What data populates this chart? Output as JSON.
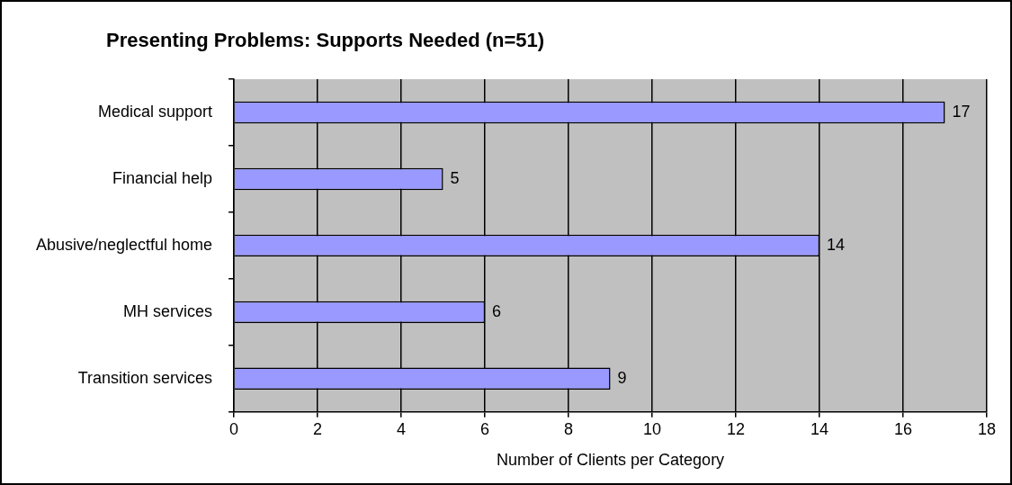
{
  "chart_data": {
    "type": "bar",
    "orientation": "horizontal",
    "title": "Presenting Problems: Supports Needed (n=51)",
    "xlabel": "Number of Clients per Category",
    "categories": [
      "Medical support",
      "Financial help",
      "Abusive/neglectful home",
      "MH services",
      "Transition services"
    ],
    "values": [
      17,
      5,
      14,
      6,
      9
    ],
    "color": "#9999ff",
    "xlim": [
      0,
      18
    ],
    "xticks": [
      0,
      2,
      4,
      6,
      8,
      10,
      12,
      14,
      16,
      18
    ],
    "grid": "x",
    "legend": false,
    "data_labels": true
  }
}
